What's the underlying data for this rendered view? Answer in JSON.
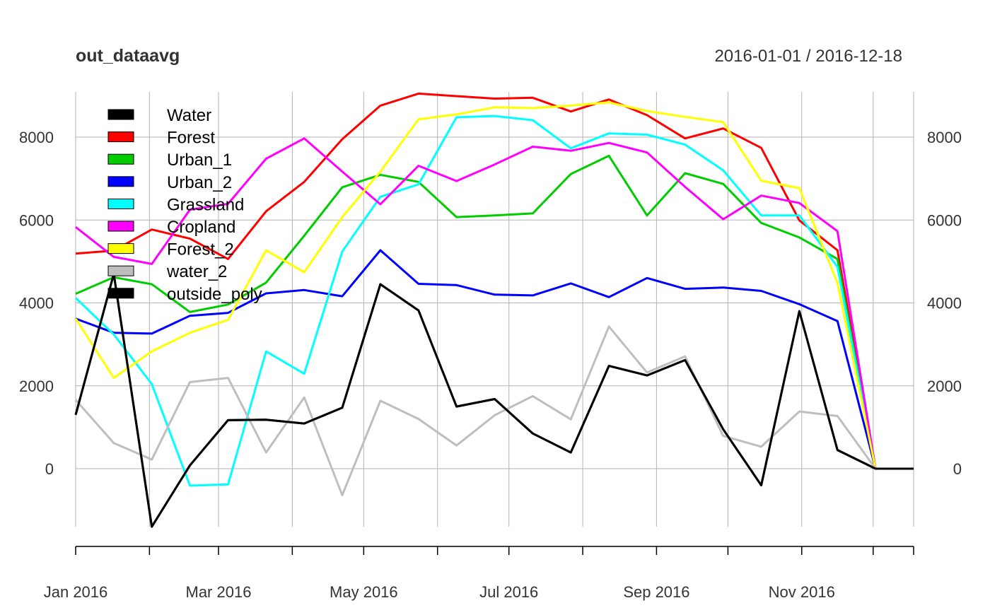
{
  "chart_data": {
    "type": "line",
    "title": "out_dataavg",
    "date_range": "2016-01-01 / 2016-12-18",
    "x": [
      "2016-01-01",
      "2016-01-17",
      "2016-02-02",
      "2016-02-18",
      "2016-03-05",
      "2016-03-21",
      "2016-04-06",
      "2016-04-22",
      "2016-05-08",
      "2016-05-24",
      "2016-06-09",
      "2016-06-25",
      "2016-07-11",
      "2016-07-27",
      "2016-08-12",
      "2016-08-28",
      "2016-09-13",
      "2016-09-29",
      "2016-10-15",
      "2016-10-31",
      "2016-11-16",
      "2016-12-02",
      "2016-12-18"
    ],
    "x_ticks": [
      {
        "date": "2016-01-01",
        "label": "Jan 2016"
      },
      {
        "date": "2016-02-01",
        "label": ""
      },
      {
        "date": "2016-03-01",
        "label": "Mar 2016"
      },
      {
        "date": "2016-04-01",
        "label": ""
      },
      {
        "date": "2016-05-01",
        "label": "May 2016"
      },
      {
        "date": "2016-06-01",
        "label": ""
      },
      {
        "date": "2016-07-01",
        "label": "Jul 2016"
      },
      {
        "date": "2016-08-01",
        "label": ""
      },
      {
        "date": "2016-09-01",
        "label": "Sep 2016"
      },
      {
        "date": "2016-10-01",
        "label": ""
      },
      {
        "date": "2016-11-01",
        "label": "Nov 2016"
      },
      {
        "date": "2016-12-01",
        "label": ""
      },
      {
        "date": "2016-12-18",
        "label": ""
      }
    ],
    "y_ticks": [
      0,
      2000,
      4000,
      6000,
      8000
    ],
    "ylim": [
      -1400,
      9050
    ],
    "grid": true,
    "legend_position": "top-left",
    "series": [
      {
        "name": "Water",
        "color": "#000000",
        "values": [
          1300,
          4700,
          -1400,
          80,
          1170,
          1180,
          1090,
          1470,
          4450,
          3820,
          1500,
          1680,
          850,
          390,
          2480,
          2250,
          2620,
          950,
          -400,
          3800,
          450,
          0,
          0
        ]
      },
      {
        "name": "Forest",
        "color": "#ff0000",
        "values": [
          5190,
          5260,
          5770,
          5550,
          5060,
          6210,
          6920,
          7950,
          8760,
          9050,
          8990,
          8930,
          8950,
          8620,
          8910,
          8530,
          7970,
          8210,
          7740,
          5990,
          5270,
          0,
          0
        ]
      },
      {
        "name": "Urban_1",
        "color": "#00cc00",
        "values": [
          4220,
          4620,
          4450,
          3780,
          3960,
          4490,
          5620,
          6790,
          7090,
          6920,
          6070,
          6110,
          6160,
          7110,
          7550,
          6110,
          7130,
          6870,
          5930,
          5580,
          5060,
          0,
          0
        ]
      },
      {
        "name": "Urban_2",
        "color": "#0000ff",
        "values": [
          3620,
          3280,
          3260,
          3690,
          3760,
          4230,
          4310,
          4160,
          5270,
          4460,
          4430,
          4200,
          4180,
          4470,
          4140,
          4600,
          4340,
          4370,
          4290,
          3970,
          3560,
          0,
          0
        ]
      },
      {
        "name": "Grassland",
        "color": "#00ffff",
        "values": [
          4120,
          3240,
          2040,
          -410,
          -380,
          2830,
          2290,
          5240,
          6560,
          6860,
          8480,
          8510,
          8410,
          7730,
          8090,
          8060,
          7820,
          7200,
          6110,
          6110,
          4870,
          0,
          0
        ]
      },
      {
        "name": "Cropland",
        "color": "#ff00ff",
        "values": [
          5830,
          5110,
          4940,
          6250,
          6390,
          7480,
          7970,
          7170,
          6380,
          7310,
          6940,
          7340,
          7770,
          7670,
          7860,
          7630,
          6800,
          6020,
          6590,
          6410,
          5730,
          0,
          0
        ]
      },
      {
        "name": "Forest_2",
        "color": "#ffff00",
        "values": [
          3620,
          2190,
          2830,
          3280,
          3590,
          5270,
          4740,
          6070,
          7170,
          8430,
          8550,
          8720,
          8700,
          8760,
          8840,
          8630,
          8490,
          8360,
          6950,
          6770,
          4480,
          0,
          0
        ]
      },
      {
        "name": "water_2",
        "color": "#bebebe",
        "values": [
          1660,
          620,
          220,
          2090,
          2190,
          390,
          1720,
          -640,
          1640,
          1200,
          560,
          1290,
          1750,
          1190,
          3430,
          2320,
          2710,
          790,
          530,
          1380,
          1270,
          0,
          0
        ]
      },
      {
        "name": "outside_poly",
        "color": "#000000",
        "values": [
          1300,
          4700,
          -1400,
          80,
          1170,
          1180,
          1090,
          1470,
          4450,
          3820,
          1500,
          1680,
          850,
          390,
          2480,
          2250,
          2620,
          950,
          -400,
          3800,
          450,
          0,
          0
        ]
      }
    ]
  }
}
